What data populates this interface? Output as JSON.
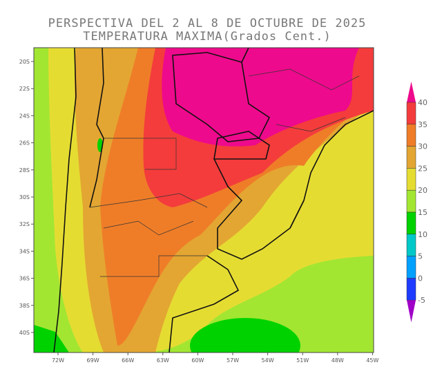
{
  "title_line1": "PERSPECTIVA DEL 2 AL 8 DE OCTUBRE DE 2025",
  "title_line2": "TEMPERATURA MAXIMA(Grados Cent.)",
  "lat_labels": [
    "20S",
    "22S",
    "24S",
    "26S",
    "28S",
    "30S",
    "32S",
    "34S",
    "36S",
    "38S",
    "40S"
  ],
  "lon_labels": [
    "72W",
    "69W",
    "66W",
    "63W",
    "60W",
    "57W",
    "54W",
    "51W",
    "48W",
    "45W"
  ],
  "colorbar": {
    "labels": [
      "40",
      "35",
      "30",
      "25",
      "20",
      "15",
      "10",
      "5",
      "0",
      "-5"
    ],
    "colors": {
      "above_40": "#ee0a8c",
      "35_40": "#f43c3c",
      "30_35": "#ef7d28",
      "25_30": "#e3a632",
      "20_25": "#e5dc32",
      "15_20": "#a2e632",
      "10_15": "#00d200",
      "5_10": "#00c8c8",
      "0_5": "#00a0ff",
      "m5_0": "#1e3cff",
      "below_m5": "#a000c8"
    }
  }
}
